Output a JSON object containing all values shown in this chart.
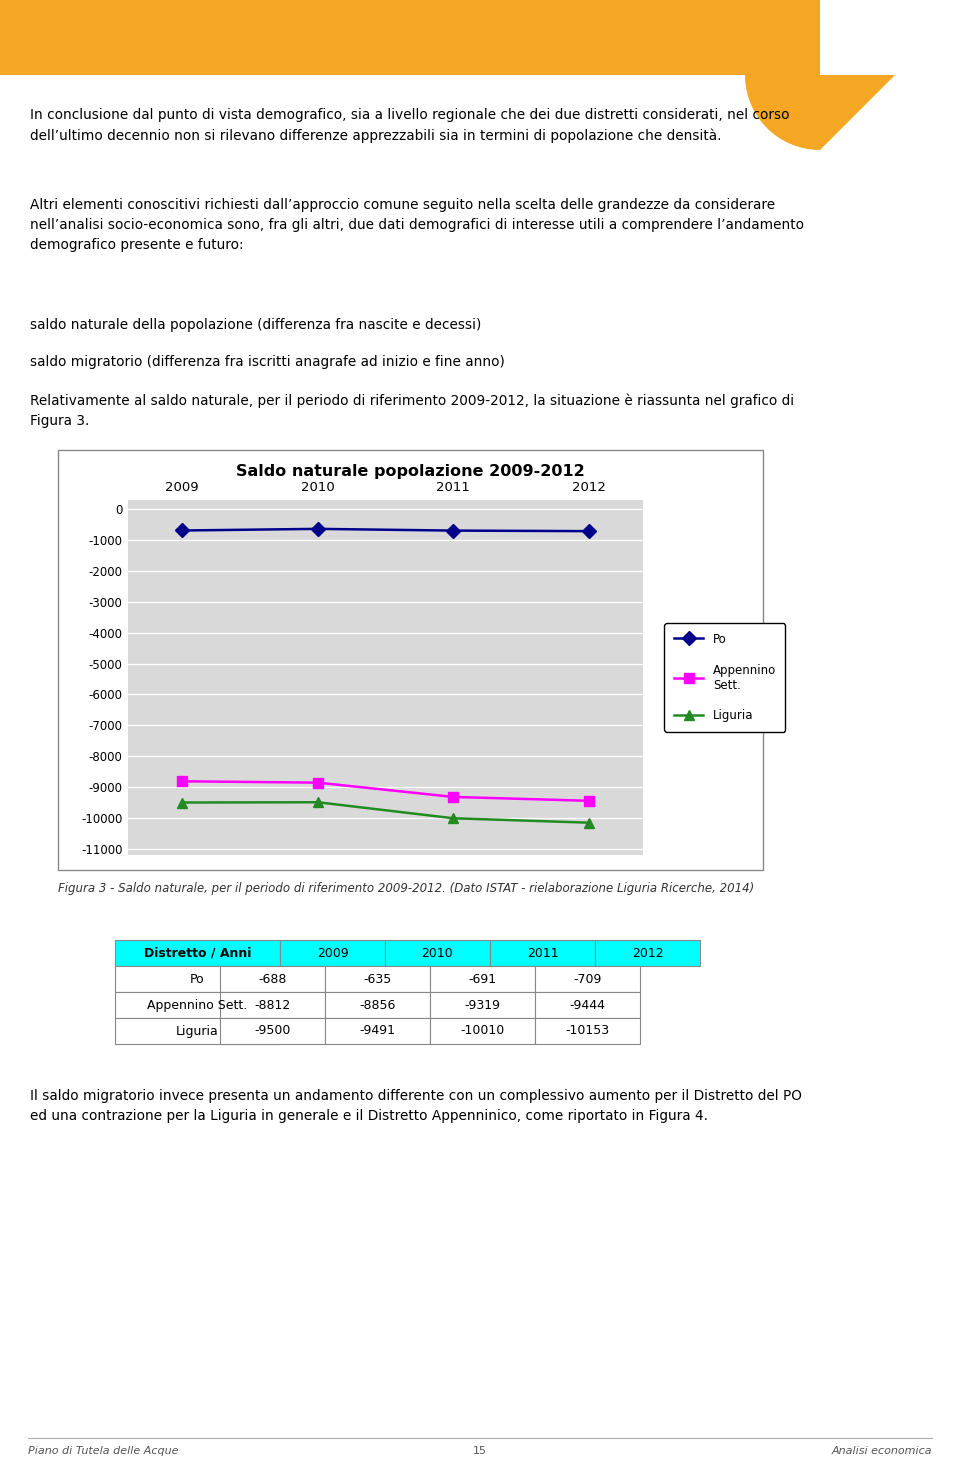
{
  "page_bg": "#ffffff",
  "header_color": "#f5a623",
  "body_text_1": "In conclusione dal punto di vista demografico, sia a livello regionale che dei due distretti considerati, nel corso\ndell’ultimo decennio non si rilevano differenze apprezzabili sia in termini di popolazione che densità.",
  "body_text_2": "Altri elementi conoscitivi richiesti dall’approccio comune seguito nella scelta delle grandezze da considerare\nnell’analisi socio-economica sono, fra gli altri, due dati demografici di interesse utili a comprendere l’andamento\ndemografico presente e futuro:",
  "body_text_3": "saldo naturale della popolazione (differenza fra nascite e decessi)",
  "body_text_4": "saldo migratorio (differenza fra iscritti anagrafe ad inizio e fine anno)",
  "body_text_5": "Relativamente al saldo naturale, per il periodo di riferimento 2009-2012, la situazione è riassunta nel grafico di\nFigura 3.",
  "chart_title": "Saldo naturale popolazione 2009-2012",
  "chart_bg": "#d9d9d9",
  "years": [
    2009,
    2010,
    2011,
    2012
  ],
  "po_values": [
    -688,
    -635,
    -691,
    -709
  ],
  "po_color": "#00008b",
  "po_label": "Po",
  "po_marker": "D",
  "appennino_values": [
    -8812,
    -8856,
    -9319,
    -9444
  ],
  "appennino_color": "#ff00ff",
  "appennino_label": "Appennino\nSett.",
  "appennino_marker": "s",
  "liguria_values": [
    -9500,
    -9491,
    -10010,
    -10153
  ],
  "liguria_color": "#228b22",
  "liguria_label": "Liguria",
  "liguria_marker": "^",
  "y_min": -11000,
  "y_max": 0,
  "y_ticks": [
    0,
    -1000,
    -2000,
    -3000,
    -4000,
    -5000,
    -6000,
    -7000,
    -8000,
    -9000,
    -10000,
    -11000
  ],
  "caption": "Figura 3 - Saldo naturale, per il periodo di riferimento 2009-2012. (Dato ISTAT - rielaborazione Liguria Ricerche, 2014)",
  "table_header": [
    "Distretto / Anni",
    "2009",
    "2010",
    "2011",
    "2012"
  ],
  "table_header_bg": "#00ffff",
  "table_rows": [
    [
      "Po",
      "-688",
      "-635",
      "-691",
      "-709"
    ],
    [
      "Appennino Sett.",
      "-8812",
      "-8856",
      "-9319",
      "-9444"
    ],
    [
      "Liguria",
      "-9500",
      "-9491",
      "-10010",
      "-10153"
    ]
  ],
  "footer_text_left": "Piano di Tutela delle Acque",
  "footer_text_center": "15",
  "footer_text_right": "Analisi economica",
  "footer_line_color": "#aaaaaa",
  "body_text_final": "Il saldo migratorio invece presenta un andamento differente con un complessivo aumento per il Distretto del PO\ned una contrazione per la Liguria in generale e il Distretto Appenninico, come riportato in Figura 4."
}
